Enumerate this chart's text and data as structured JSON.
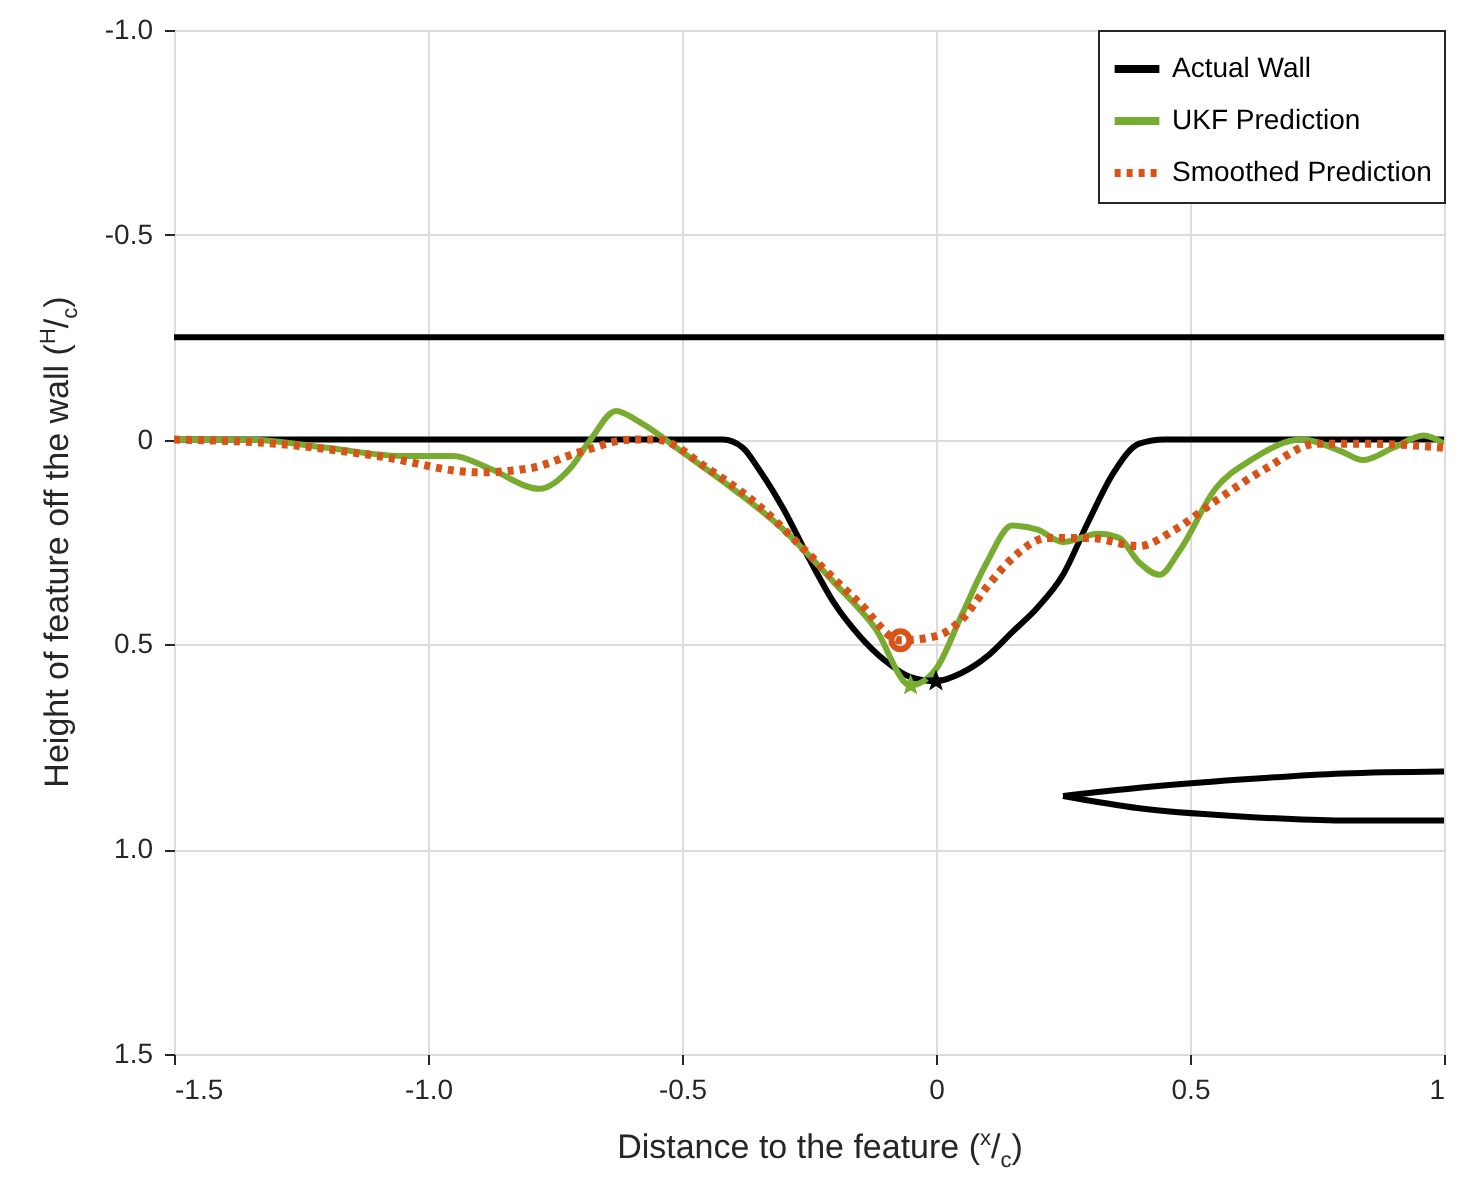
{
  "chart_data": {
    "type": "line",
    "xlabel": "Distance to the feature ($^{x}$/$_{c}$)",
    "ylabel": "Height of feature off the wall ($^{H}$/$_{c}$)",
    "xlim": [
      -1.5,
      1
    ],
    "xticks": [
      {
        "value": -1.5,
        "label": "-1.5"
      },
      {
        "value": -1,
        "label": "-1.0"
      },
      {
        "value": -0.5,
        "label": "-0.5"
      },
      0,
      0.5,
      1
    ],
    "ylim": [
      1.5,
      -1
    ],
    "yticks": [
      {
        "value": -1,
        "label": "-1.0"
      },
      -0.5,
      0,
      0.5,
      {
        "value": 1,
        "label": "1.0"
      },
      1.5
    ],
    "grid": true,
    "legend": "top right",
    "series": [
      {
        "name": "Actual Wall",
        "color": "#000000",
        "line_style": "solid",
        "x": [
          -1.5,
          -0.42,
          -0.38,
          -0.35,
          -0.3,
          -0.25,
          -0.2,
          -0.15,
          -0.1,
          -0.05,
          0,
          0.05,
          0.1,
          0.15,
          0.2,
          0.25,
          0.3,
          0.35,
          0.4,
          0.45,
          1
        ],
        "values": [
          0,
          0,
          0.02,
          0.07,
          0.17,
          0.29,
          0.4,
          0.48,
          0.54,
          0.58,
          0.59,
          0.57,
          0.53,
          0.47,
          0.41,
          0.33,
          0.2,
          0.08,
          0.01,
          0,
          0
        ]
      },
      {
        "name": "UKF Prediction",
        "color": "#77ac30",
        "line_style": "solid",
        "x": [
          -1.5,
          -1.35,
          -1.2,
          -1.05,
          -0.95,
          -0.88,
          -0.78,
          -0.72,
          -0.68,
          -0.63,
          -0.58,
          -0.5,
          -0.4,
          -0.3,
          -0.2,
          -0.12,
          -0.05,
          0,
          0.05,
          0.1,
          0.15,
          0.2,
          0.25,
          0.32,
          0.36,
          0.4,
          0.44,
          0.48,
          0.55,
          0.62,
          0.72,
          0.8,
          0.84,
          0.9,
          0.96,
          1
        ],
        "values": [
          0,
          0,
          0.02,
          0.04,
          0.04,
          0.07,
          0.12,
          0.07,
          0,
          -0.07,
          -0.04,
          0.03,
          0.12,
          0.22,
          0.35,
          0.46,
          0.6,
          0.56,
          0.43,
          0.3,
          0.21,
          0.22,
          0.25,
          0.23,
          0.24,
          0.3,
          0.33,
          0.27,
          0.12,
          0.05,
          0,
          0.03,
          0.05,
          0.02,
          -0.01,
          0.01
        ]
      },
      {
        "name": "Smoothed Prediction",
        "color": "#d95319",
        "line_style": "dotted",
        "x": [
          -1.5,
          -1.3,
          -1.1,
          -0.9,
          -0.8,
          -0.7,
          -0.6,
          -0.55,
          -0.45,
          -0.35,
          -0.25,
          -0.15,
          -0.07,
          0,
          0.05,
          0.1,
          0.15,
          0.22,
          0.3,
          0.4,
          0.47,
          0.55,
          0.65,
          0.75,
          0.85,
          1
        ],
        "values": [
          0,
          0.01,
          0.04,
          0.08,
          0.07,
          0.03,
          0,
          0,
          0.07,
          0.16,
          0.28,
          0.4,
          0.49,
          0.48,
          0.44,
          0.36,
          0.29,
          0.24,
          0.24,
          0.26,
          0.22,
          0.15,
          0.07,
          0.01,
          0.01,
          0.02
        ]
      },
      {
        "type": "line",
        "color": "#000000",
        "line_style": "solid",
        "x": [
          -1.5,
          1
        ],
        "values": [
          -0.25,
          -0.25
        ]
      },
      {
        "type": "line",
        "color": "#000000",
        "line_style": "solid",
        "x": [
          0.25,
          0.4,
          0.6,
          0.8,
          1
        ],
        "values": [
          0.87,
          0.85,
          0.83,
          0.815,
          0.81
        ]
      },
      {
        "type": "line",
        "color": "#000000",
        "line_style": "solid",
        "x": [
          0.25,
          0.4,
          0.6,
          0.8,
          1
        ],
        "values": [
          0.87,
          0.9,
          0.92,
          0.93,
          0.93
        ]
      },
      {
        "type": "scatter",
        "color": "#000000",
        "marker": "star",
        "x": [
          0
        ],
        "values": [
          0.59
        ]
      },
      {
        "type": "scatter",
        "color": "#77ac30",
        "marker": "star",
        "x": [
          -0.05
        ],
        "values": [
          0.6
        ]
      },
      {
        "type": "scatter",
        "color": "#d95319",
        "marker": "circle",
        "x": [
          -0.07
        ],
        "values": [
          0.49
        ]
      }
    ]
  }
}
